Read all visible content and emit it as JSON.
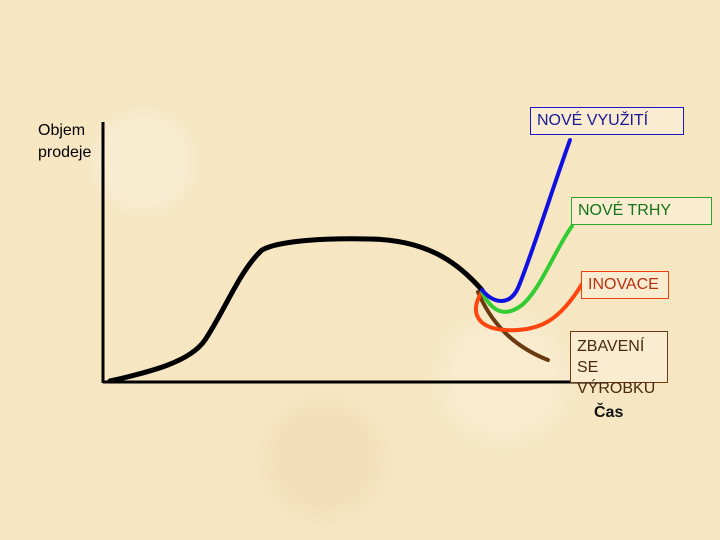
{
  "axes": {
    "y_label_line1": "Objem",
    "y_label_line2": "prodeje",
    "x_label": "Čas"
  },
  "labels": {
    "nove_vyuziti": "NOVÉ VYUŽITÍ",
    "nove_trhy": "NOVÉ TRHY",
    "inovace": "INOVACE",
    "zbaveni_line1": "ZBAVENÍ SE",
    "zbaveni_line2": "VÝROBKU"
  },
  "colors": {
    "background": "#f6e6c2",
    "main_curve": "#000000",
    "nove_vyuziti": "#1010e0",
    "nove_trhy": "#33cc33",
    "inovace": "#ff4410",
    "zbaveni": "#6b3a10"
  }
}
